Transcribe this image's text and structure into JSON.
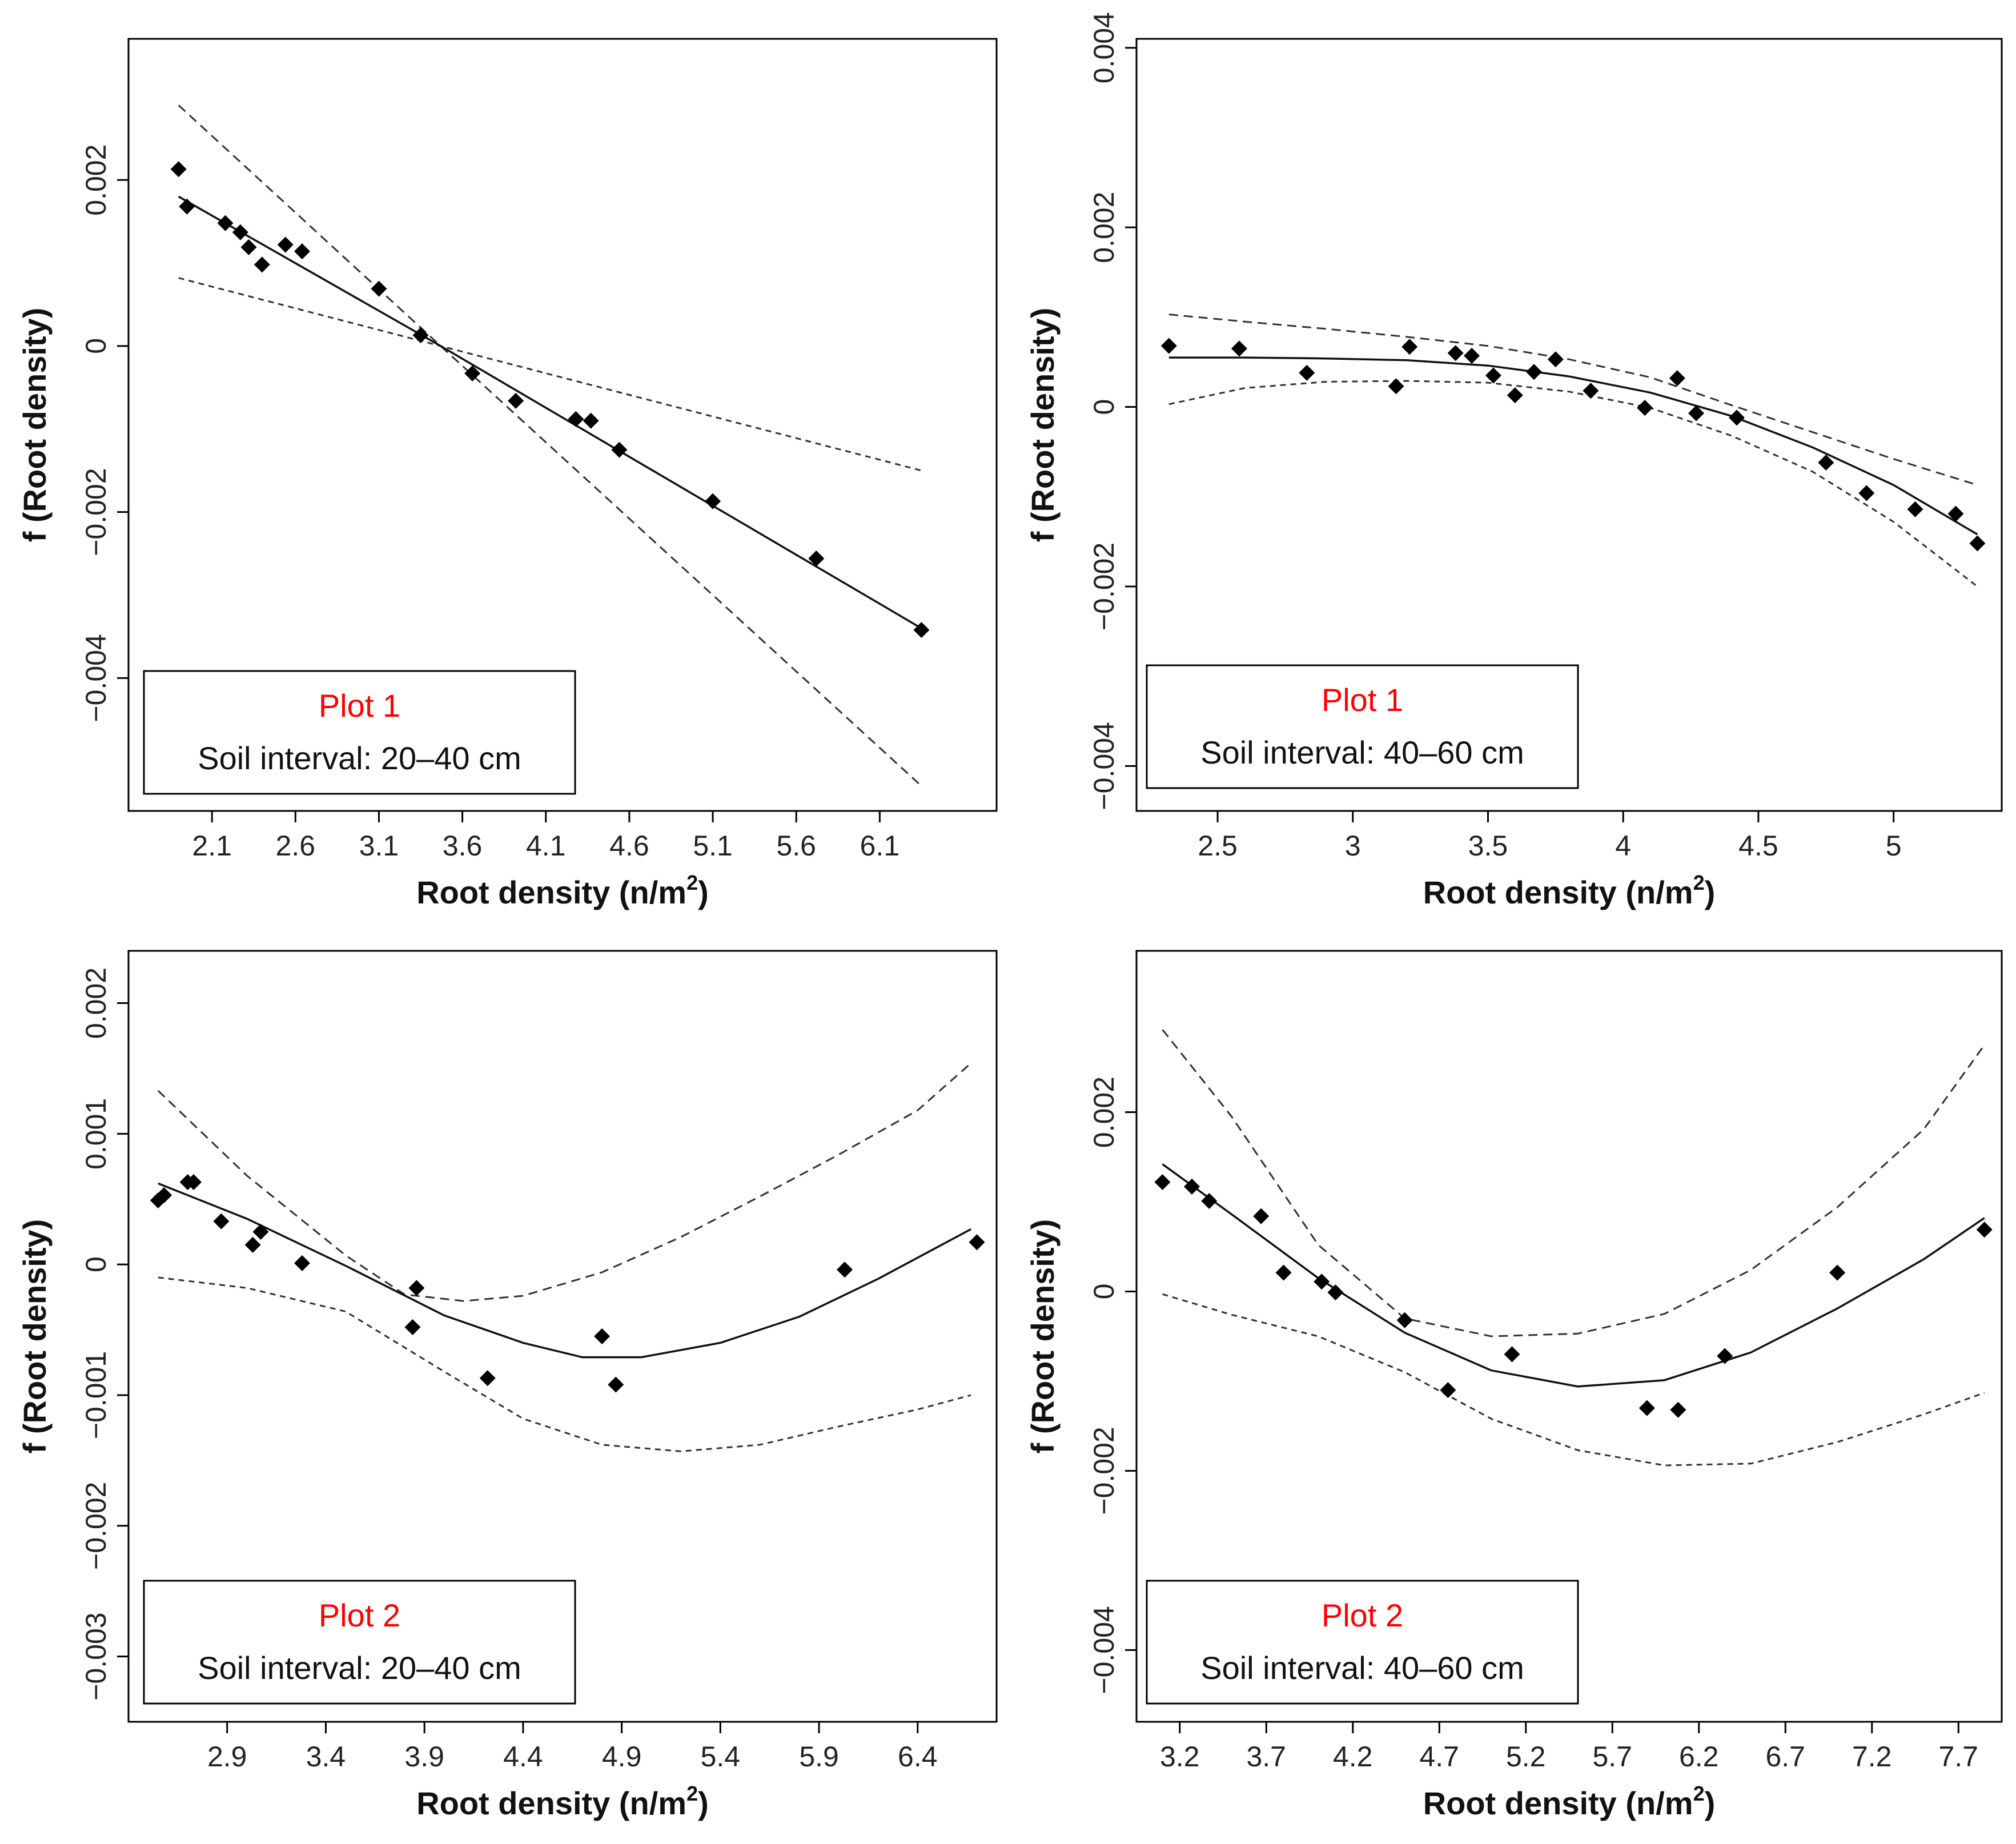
{
  "chart_data": [
    {
      "type": "scatter",
      "xlabel_main": "Root density (n/m",
      "xlabel_sup": "2",
      "xlabel_end": ")",
      "ylabel": "f (Root density)",
      "legend_plot": "Plot 1",
      "legend_soil": "Soil interval: 20–40 cm",
      "legend_position": "bottom-left",
      "xlim": [
        1.6,
        6.8
      ],
      "ylim": [
        -0.0056,
        0.0037
      ],
      "xticks": [
        2.1,
        2.6,
        3.1,
        3.6,
        4.1,
        4.6,
        5.1,
        5.6,
        6.1
      ],
      "xtick_labels": [
        "2.1",
        "2.6",
        "3.1",
        "3.6",
        "4.1",
        "4.6",
        "5.1",
        "5.6",
        "6.1"
      ],
      "yticks": [
        0.002,
        0,
        -0.002,
        -0.004
      ],
      "ytick_labels": [
        "0.002",
        "0",
        "−0.002",
        "−0.004"
      ],
      "points": {
        "x": [
          1.9,
          1.95,
          2.18,
          2.27,
          2.32,
          2.4,
          2.54,
          2.64,
          3.1,
          3.35,
          3.66,
          3.92,
          4.28,
          4.37,
          4.54,
          5.1,
          5.72,
          6.35
        ],
        "y": [
          0.00213,
          0.00168,
          0.00148,
          0.00137,
          0.00119,
          0.00098,
          0.00122,
          0.00114,
          0.00069,
          0.00013,
          -0.00033,
          -0.00066,
          -0.00088,
          -0.0009,
          -0.00125,
          -0.00187,
          -0.00256,
          -0.00342
        ]
      },
      "fit": {
        "x": [
          1.9,
          3.47,
          6.35
        ],
        "y": [
          0.0018,
          0.0,
          -0.0034
        ]
      },
      "upper": {
        "x": [
          1.9,
          3.47,
          6.35
        ],
        "y": [
          0.0029,
          0.0,
          -0.0053
        ]
      },
      "lower": {
        "x": [
          1.9,
          3.47,
          6.35
        ],
        "y": [
          0.00082,
          0.0,
          -0.0015
        ]
      }
    },
    {
      "type": "scatter",
      "xlabel_main": "Root density (n/m",
      "xlabel_sup": "2",
      "xlabel_end": ")",
      "ylabel": "f (Root density)",
      "legend_plot": "Plot 1",
      "legend_soil": "Soil interval: 40–60 cm",
      "legend_position": "bottom-left",
      "xlim": [
        2.2,
        5.4
      ],
      "ylim": [
        -0.0045,
        0.0041
      ],
      "xticks": [
        2.5,
        3.0,
        3.5,
        4.0,
        4.5,
        5.0
      ],
      "xtick_labels": [
        "2.5",
        "3",
        "3.5",
        "4",
        "4.5",
        "5"
      ],
      "yticks": [
        0.004,
        0.002,
        0,
        -0.002,
        -0.004
      ],
      "ytick_labels": [
        "0.004",
        "0.002",
        "0",
        "−0.002",
        "−0.004"
      ],
      "points": {
        "x": [
          2.32,
          2.58,
          2.83,
          3.16,
          3.21,
          3.38,
          3.44,
          3.52,
          3.6,
          3.67,
          3.75,
          3.88,
          4.08,
          4.2,
          4.27,
          4.42,
          4.75,
          4.9,
          5.08,
          5.23,
          5.31
        ],
        "y": [
          0.00068,
          0.00065,
          0.00038,
          0.00023,
          0.00067,
          0.0006,
          0.00057,
          0.00035,
          0.00013,
          0.00039,
          0.00053,
          0.00018,
          -1e-05,
          0.00032,
          -7e-05,
          -0.00012,
          -0.00062,
          -0.00096,
          -0.00114,
          -0.00119,
          -0.00152
        ]
      },
      "fit": {
        "x": [
          2.32,
          2.6,
          2.9,
          3.2,
          3.5,
          3.8,
          4.1,
          4.4,
          4.7,
          5.0,
          5.31
        ],
        "y": [
          0.00055,
          0.00055,
          0.00054,
          0.00052,
          0.00046,
          0.00034,
          0.00016,
          -0.0001,
          -0.00045,
          -0.00087,
          -0.00142
        ]
      },
      "upper": {
        "x": [
          2.32,
          2.6,
          2.9,
          3.2,
          3.5,
          3.8,
          4.1,
          4.4,
          4.7,
          5.0,
          5.31
        ],
        "y": [
          0.00103,
          0.00095,
          0.00087,
          0.00078,
          0.00068,
          0.00053,
          0.00033,
          2e-05,
          -0.00028,
          -0.00058,
          -0.00087
        ]
      },
      "lower": {
        "x": [
          2.32,
          2.6,
          2.9,
          3.2,
          3.5,
          3.8,
          4.1,
          4.4,
          4.7,
          5.0,
          5.31
        ],
        "y": [
          3e-05,
          0.00021,
          0.00028,
          0.00029,
          0.00027,
          0.00017,
          -1e-05,
          -0.00032,
          -0.00072,
          -0.00128,
          -0.002
        ]
      }
    },
    {
      "type": "scatter",
      "xlabel_main": "Root density (n/m",
      "xlabel_sup": "2",
      "xlabel_end": ")",
      "ylabel": "f (Root density)",
      "legend_plot": "Plot 2",
      "legend_soil": "Soil interval: 20–40 cm",
      "legend_position": "bottom-left",
      "xlim": [
        2.4,
        6.8
      ],
      "ylim": [
        -0.0035,
        0.0024
      ],
      "xticks": [
        2.9,
        3.4,
        3.9,
        4.4,
        4.9,
        5.4,
        5.9,
        6.4
      ],
      "xtick_labels": [
        "2.9",
        "3.4",
        "3.9",
        "4.4",
        "4.9",
        "5.4",
        "5.9",
        "6.4"
      ],
      "yticks": [
        0.002,
        0.001,
        0,
        -0.001,
        -0.002,
        -0.003
      ],
      "ytick_labels": [
        "0.002",
        "0.001",
        "0",
        "−0.001",
        "−0.002",
        "−0.003"
      ],
      "points": {
        "x": [
          2.55,
          2.58,
          2.7,
          2.73,
          2.87,
          3.03,
          3.07,
          3.28,
          3.84,
          3.86,
          4.22,
          4.8,
          4.87,
          6.03,
          6.7
        ],
        "y": [
          0.00049,
          0.00053,
          0.00063,
          0.00063,
          0.00033,
          0.00015,
          0.00025,
          1e-05,
          -0.00048,
          -0.00018,
          -0.00087,
          -0.00055,
          -0.00092,
          -4e-05,
          0.00017
        ]
      },
      "fit": {
        "x": [
          2.55,
          3.0,
          3.5,
          4.0,
          4.4,
          4.7,
          5.0,
          5.4,
          5.8,
          6.2,
          6.67
        ],
        "y": [
          0.00062,
          0.00035,
          -1e-05,
          -0.00039,
          -0.0006,
          -0.00071,
          -0.00071,
          -0.0006,
          -0.0004,
          -0.00011,
          0.00027
        ]
      },
      "upper": {
        "x": [
          2.55,
          3.0,
          3.5,
          3.8,
          4.1,
          4.4,
          4.8,
          5.2,
          5.6,
          6.0,
          6.4,
          6.67
        ],
        "y": [
          0.00133,
          0.00068,
          7e-05,
          -0.00023,
          -0.00028,
          -0.00024,
          -6e-05,
          0.00021,
          0.00052,
          0.00084,
          0.00118,
          0.00154
        ]
      },
      "lower": {
        "x": [
          2.55,
          3.0,
          3.5,
          4.0,
          4.4,
          4.8,
          5.2,
          5.6,
          6.0,
          6.4,
          6.67
        ],
        "y": [
          -0.0001,
          -0.00018,
          -0.00036,
          -0.00082,
          -0.00118,
          -0.00138,
          -0.00143,
          -0.00138,
          -0.00124,
          -0.00111,
          -0.001
        ]
      }
    },
    {
      "type": "scatter",
      "xlabel_main": "Root density (n/m",
      "xlabel_sup": "2",
      "xlabel_end": ")",
      "ylabel": "f (Root density)",
      "legend_plot": "Plot 2",
      "legend_soil": "Soil interval: 40–60 cm",
      "legend_position": "bottom-left",
      "xlim": [
        2.95,
        7.95
      ],
      "ylim": [
        -0.0048,
        0.0038
      ],
      "xticks": [
        3.2,
        3.7,
        4.2,
        4.7,
        5.2,
        5.7,
        6.2,
        6.7,
        7.2,
        7.7
      ],
      "xtick_labels": [
        "3.2",
        "3.7",
        "4.2",
        "4.7",
        "5.2",
        "5.7",
        "6.2",
        "6.7",
        "7.2",
        "7.7"
      ],
      "yticks": [
        0.002,
        0,
        -0.002,
        -0.004
      ],
      "ytick_labels": [
        "0.002",
        "0",
        "−0.002",
        "−0.004"
      ],
      "points": {
        "x": [
          3.1,
          3.27,
          3.37,
          3.67,
          3.8,
          4.02,
          4.1,
          4.5,
          4.75,
          5.12,
          5.9,
          6.08,
          6.35,
          7.0,
          7.85
        ],
        "y": [
          0.00122,
          0.00117,
          0.00101,
          0.00084,
          0.00021,
          0.00011,
          -1e-05,
          -0.00032,
          -0.0011,
          -0.0007,
          -0.0013,
          -0.00132,
          -0.00072,
          0.00021,
          0.00069
        ]
      },
      "fit": {
        "x": [
          3.1,
          3.5,
          4.0,
          4.5,
          5.0,
          5.5,
          6.0,
          6.5,
          7.0,
          7.5,
          7.85
        ],
        "y": [
          0.00142,
          0.00086,
          0.00015,
          -0.00046,
          -0.00088,
          -0.00106,
          -0.00099,
          -0.00068,
          -0.00019,
          0.00036,
          0.00082
        ]
      },
      "upper": {
        "x": [
          3.1,
          3.5,
          4.0,
          4.5,
          5.0,
          5.5,
          6.0,
          6.5,
          7.0,
          7.5,
          7.85
        ],
        "y": [
          0.00292,
          0.00195,
          0.00052,
          -0.0003,
          -0.0005,
          -0.00047,
          -0.00025,
          0.00024,
          0.00094,
          0.00181,
          0.00275
        ]
      },
      "lower": {
        "x": [
          3.1,
          3.5,
          4.0,
          4.5,
          5.0,
          5.5,
          6.0,
          6.5,
          7.0,
          7.5,
          7.85
        ],
        "y": [
          -3e-05,
          -0.00026,
          -0.0005,
          -0.0009,
          -0.00142,
          -0.00177,
          -0.00194,
          -0.00192,
          -0.00168,
          -0.00137,
          -0.00113
        ]
      }
    }
  ]
}
